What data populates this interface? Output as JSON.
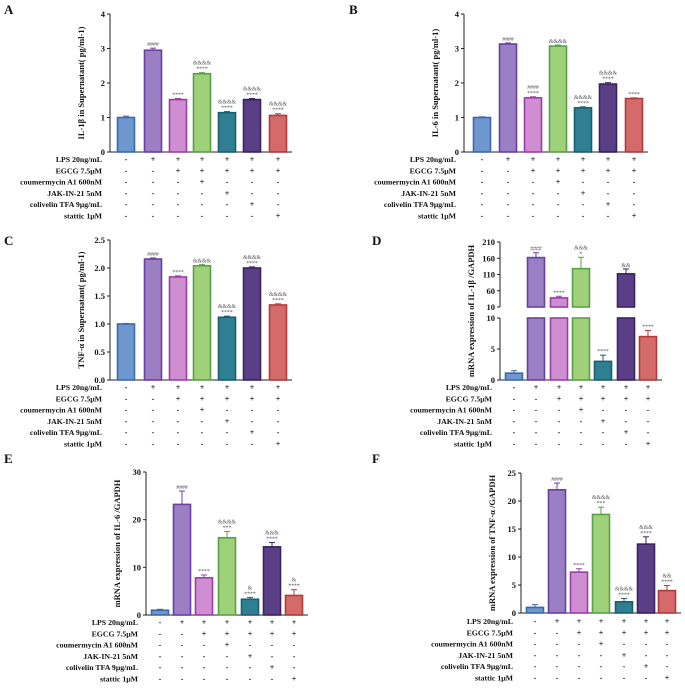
{
  "conditions": [
    "LPS 20ng/mL",
    "EGCG 7.5μM",
    "coumermycin A1 600nM",
    "JAK-IN-21 5nM",
    "colivelin TFA 9μg/mL",
    "stattic 1μM"
  ],
  "signs": [
    [
      "-",
      "+",
      "+",
      "+",
      "+",
      "+",
      "+"
    ],
    [
      "-",
      "-",
      "+",
      "+",
      "+",
      "+",
      "+"
    ],
    [
      "-",
      "-",
      "-",
      "+",
      "-",
      "-",
      "-"
    ],
    [
      "-",
      "-",
      "-",
      "-",
      "+",
      "-",
      "-"
    ],
    [
      "-",
      "-",
      "-",
      "-",
      "-",
      "+",
      "-"
    ],
    [
      "-",
      "-",
      "-",
      "-",
      "-",
      "-",
      "+"
    ]
  ],
  "bar_colors": {
    "fill": [
      "#6f97cf",
      "#9a7fc4",
      "#cf8ed1",
      "#9fd07a",
      "#2f7f93",
      "#5b3f86",
      "#d56a6a"
    ],
    "edge": [
      "#3c6aa8",
      "#6a3fa0",
      "#9b3ea8",
      "#5aa048",
      "#1c5d70",
      "#3a2262",
      "#b03b3b"
    ]
  },
  "chart_data": [
    {
      "type": "bar",
      "panel": "A",
      "ylabel": "IL-1β in Supernatant( pg/ml-1)",
      "ylim": [
        0,
        4
      ],
      "yticks": [
        "0",
        "1",
        "2",
        "3",
        "4"
      ],
      "values": [
        1.0,
        2.95,
        1.52,
        2.27,
        1.14,
        1.52,
        1.06
      ],
      "errors": [
        0.04,
        0.06,
        0.03,
        0.03,
        0.03,
        0.03,
        0.05
      ],
      "annotations": [
        [],
        [
          "####"
        ],
        [
          "****"
        ],
        [
          "&&&&",
          "****"
        ],
        [
          "&&&&",
          "****"
        ],
        [
          "&&&&",
          "****"
        ],
        [
          "&&&&",
          "****"
        ]
      ]
    },
    {
      "type": "bar",
      "panel": "B",
      "ylabel": "IL-6 in Supernatant( pg/ml-1)",
      "ylim": [
        0,
        4
      ],
      "yticks": [
        "0",
        "1",
        "2",
        "3",
        "4"
      ],
      "values": [
        1.0,
        3.13,
        1.57,
        3.07,
        1.28,
        1.97,
        1.55
      ],
      "errors": [
        0.02,
        0.03,
        0.03,
        0.03,
        0.03,
        0.04,
        0.02
      ],
      "annotations": [
        [],
        [
          "####"
        ],
        [
          "####",
          "****"
        ],
        [
          "&&&&"
        ],
        [
          "&&&&",
          "****"
        ],
        [
          "&&&&",
          "****"
        ],
        [
          "****"
        ]
      ]
    },
    {
      "type": "bar",
      "panel": "C",
      "ylabel": "TNF-α in Supernatant( pg/ml-1)",
      "ylim": [
        0,
        2.5
      ],
      "yticks": [
        "0.0",
        "0.5",
        "1.0",
        "1.5",
        "2.0",
        "2.5"
      ],
      "values": [
        1.0,
        2.16,
        1.84,
        2.04,
        1.12,
        2.0,
        1.34
      ],
      "errors": [
        0.01,
        0.02,
        0.02,
        0.02,
        0.02,
        0.02,
        0.02
      ],
      "annotations": [
        [],
        [
          "####"
        ],
        [
          "****"
        ],
        [
          "&&&&"
        ],
        [
          "&&&&",
          "****"
        ],
        [
          "&&&&",
          "****"
        ],
        [
          "&&&&",
          "****"
        ]
      ]
    },
    {
      "type": "bar",
      "panel": "D",
      "broken_axis": true,
      "ylabel": "mRNA expression of IL-1β /GAPDH",
      "yticks_lower": [
        "0",
        "5",
        "10"
      ],
      "yticks_upper": [
        "10",
        "60",
        "110",
        "160",
        "210"
      ],
      "values": [
        1.1,
        162,
        38,
        128,
        3,
        112,
        7
      ],
      "errors": [
        0.4,
        15,
        5,
        35,
        1,
        15,
        1
      ],
      "annotations": [
        [],
        [
          "####"
        ],
        [
          "****"
        ],
        [
          "&&&",
          "*"
        ],
        [
          "****"
        ],
        [
          "&&"
        ],
        [
          "****"
        ]
      ]
    },
    {
      "type": "bar",
      "panel": "E",
      "ylabel": "mRNA expression of IL-6 /GAPDH",
      "ylim": [
        0,
        30
      ],
      "yticks": [
        "0",
        "10",
        "20",
        "30"
      ],
      "values": [
        1.0,
        23.2,
        7.8,
        16.2,
        3.3,
        14.3,
        4.1
      ],
      "errors": [
        0.2,
        2.8,
        0.6,
        1.3,
        0.4,
        0.9,
        1.2
      ],
      "annotations": [
        [],
        [
          "####"
        ],
        [
          "****"
        ],
        [
          "&&&&",
          "***"
        ],
        [
          "&",
          "****"
        ],
        [
          "&&&",
          "****"
        ],
        [
          "&",
          "****"
        ]
      ]
    },
    {
      "type": "bar",
      "panel": "F",
      "ylabel": "mRNA expression of TNF-α /GAPDH",
      "ylim": [
        0,
        25
      ],
      "yticks": [
        "0",
        "5",
        "10",
        "15",
        "20",
        "25"
      ],
      "values": [
        1.0,
        22.0,
        7.3,
        17.6,
        2.0,
        12.3,
        4.0
      ],
      "errors": [
        0.5,
        1.2,
        0.6,
        1.3,
        0.6,
        1.3,
        0.9
      ],
      "annotations": [
        [],
        [
          "####"
        ],
        [
          "****"
        ],
        [
          "&&&&",
          "***"
        ],
        [
          "&&&&",
          "****"
        ],
        [
          "&&&",
          "****"
        ],
        [
          "&&",
          "****"
        ]
      ]
    }
  ]
}
